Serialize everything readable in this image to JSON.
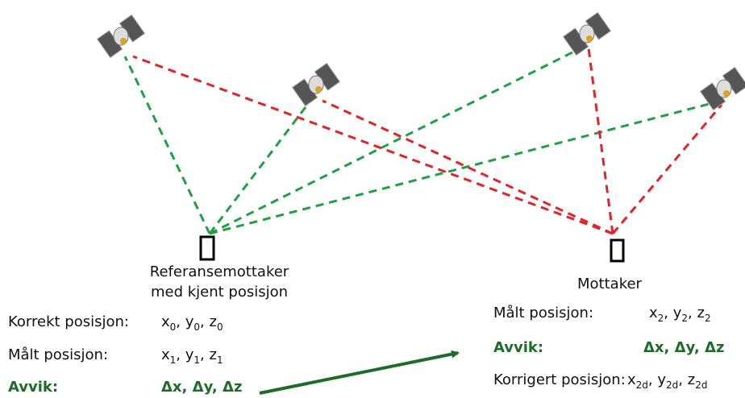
{
  "reference": {
    "label_lines": [
      "Referansemottaker",
      "med kjent posisjon"
    ],
    "rows": [
      {
        "label": "Korrekt posisjon:",
        "value": [
          "x",
          "0",
          ", y",
          "0",
          ", z",
          "0"
        ]
      },
      {
        "label": "Målt posisjon:",
        "value": [
          "x",
          "1",
          ", y",
          "1",
          ", z",
          "1"
        ]
      }
    ],
    "deviation": {
      "label": "Avvik:",
      "value": "Δx, Δy, Δz"
    }
  },
  "receiver": {
    "label": "Mottaker",
    "rows": [
      {
        "label": "Målt posisjon:",
        "value": [
          "x",
          "2",
          ", y",
          "2",
          ", z",
          "2"
        ]
      }
    ],
    "deviation": {
      "label": "Avvik:",
      "value": "Δx, Δy, Δz"
    },
    "corrected": {
      "label": "Korrigert posisjon:",
      "value": [
        "x",
        "2d",
        ", y",
        "2d",
        ", z",
        "2d"
      ]
    }
  }
}
